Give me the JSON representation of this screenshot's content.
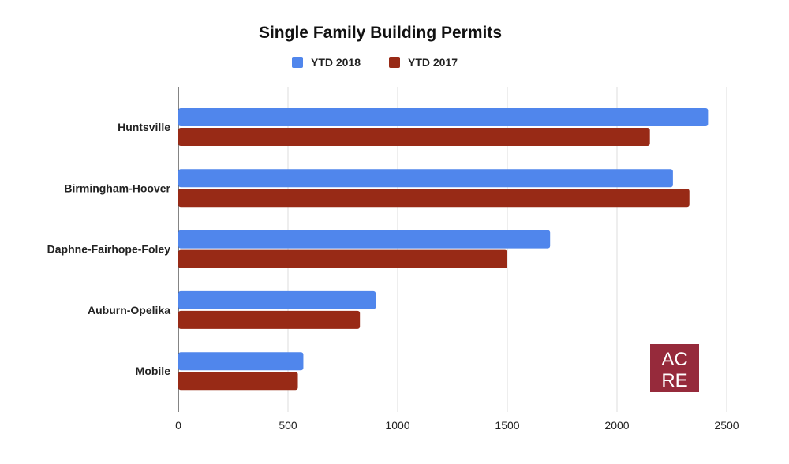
{
  "chart_data": {
    "type": "bar",
    "orientation": "horizontal",
    "title": "Single Family Building Permits",
    "categories": [
      "Huntsville",
      "Birmingham-Hoover",
      "Daphne-Fairhope-Foley",
      "Auburn-Opelika",
      "Mobile"
    ],
    "series": [
      {
        "name": "YTD 2018",
        "color": "#5086ec",
        "values": [
          2415,
          2255,
          1695,
          900,
          570
        ]
      },
      {
        "name": "YTD 2017",
        "color": "#982a16",
        "values": [
          2150,
          2330,
          1500,
          828,
          545
        ]
      }
    ],
    "xlim": [
      0,
      2500
    ],
    "xticks": [
      "0",
      "500",
      "1000",
      "1500",
      "2000",
      "2500"
    ],
    "grid": true,
    "legend_position": "top"
  },
  "logo": {
    "text_line1": "AC",
    "text_line2": "RE",
    "color": "#962a3b"
  }
}
